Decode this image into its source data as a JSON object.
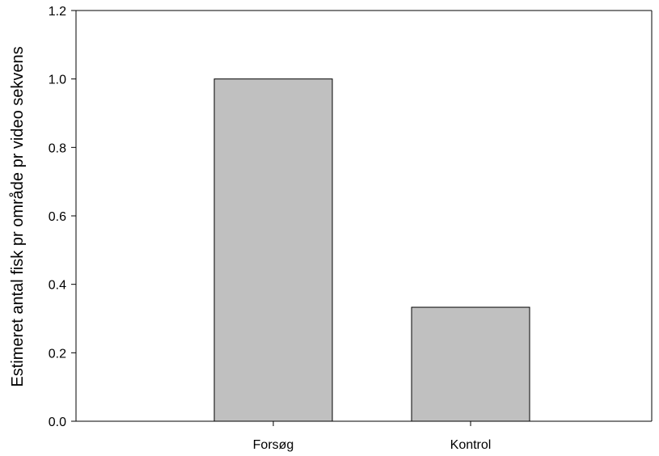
{
  "chart_data": {
    "type": "bar",
    "title": "",
    "xlabel": "",
    "ylabel": "Estimeret antal fisk pr område pr video sekvens",
    "categories": [
      "Forsøg",
      "Kontrol"
    ],
    "values": [
      1.0,
      0.333
    ],
    "ylim": [
      0,
      1.2
    ],
    "yticks": [
      "0.0",
      "0.2",
      "0.4",
      "0.6",
      "0.8",
      "1.0",
      "1.2"
    ],
    "grid": false,
    "legend": "none",
    "colors": {
      "bar_fill": "#c0c0c0",
      "bar_stroke": "#000000",
      "axis": "#000000",
      "background": "#ffffff"
    }
  }
}
